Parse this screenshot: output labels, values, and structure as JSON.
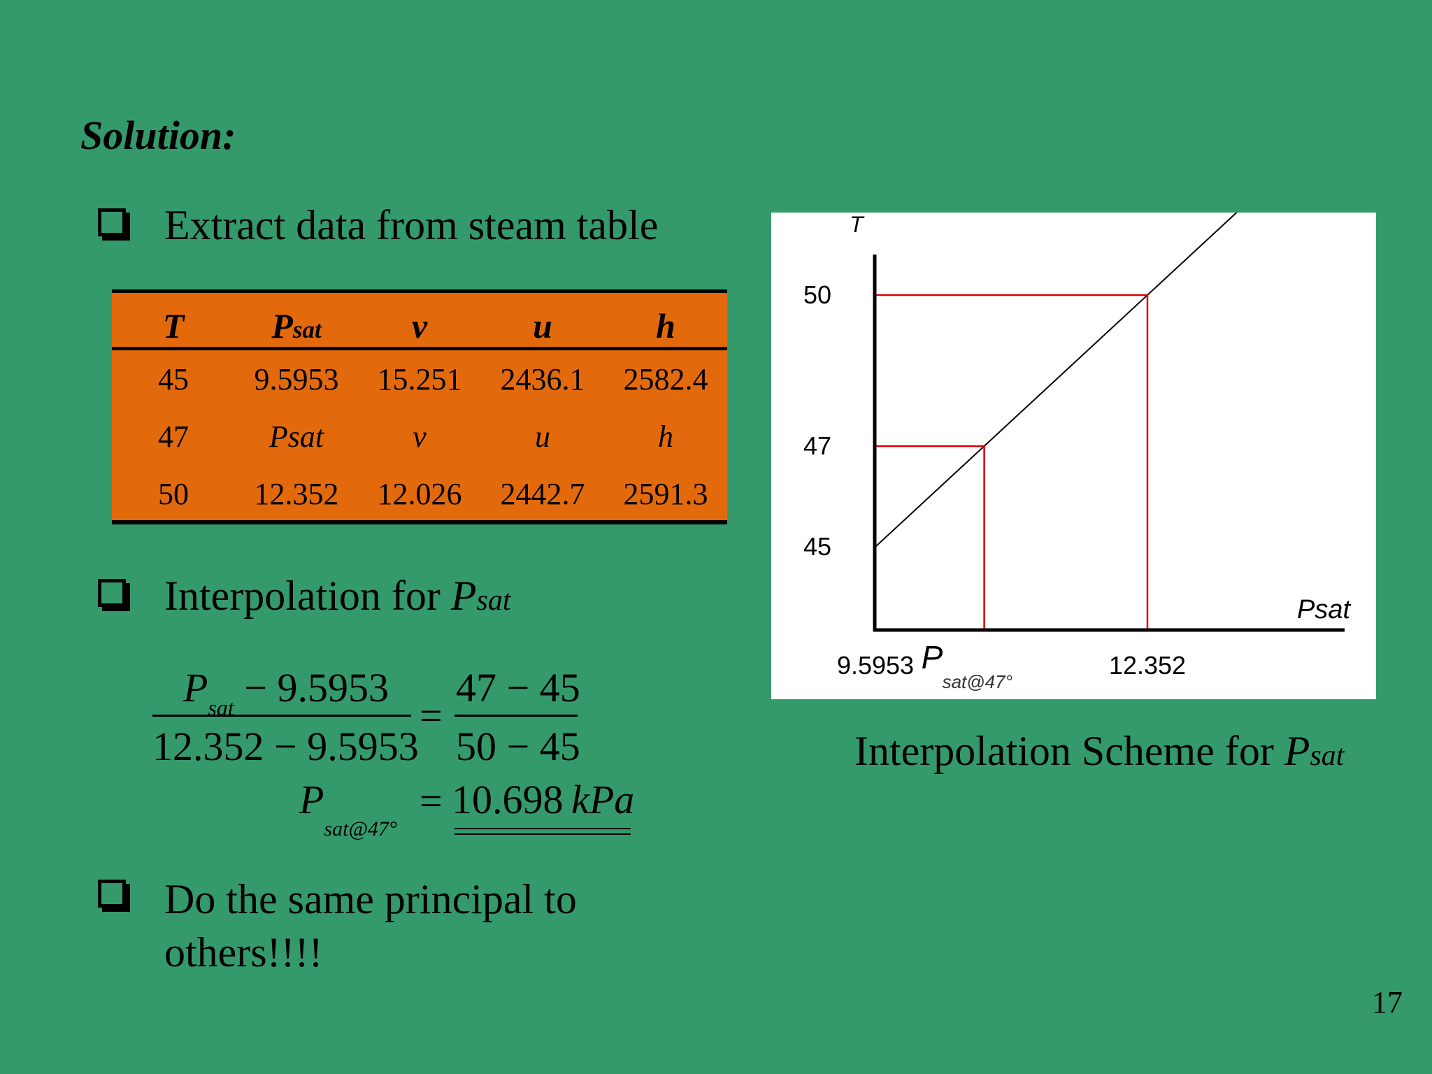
{
  "title": "Solution:",
  "bullets": {
    "b1": "Extract data from steam table",
    "b2_text": "Interpolation for ",
    "b2_var": "P",
    "b2_sub": "sat",
    "b3_line1": "Do the same principal to",
    "b3_line2": "others!!!!"
  },
  "steam_table": {
    "headers": [
      {
        "main": "T",
        "sub": ""
      },
      {
        "main": "P",
        "sub": "sat"
      },
      {
        "main": "v",
        "sub": ""
      },
      {
        "main": "u",
        "sub": ""
      },
      {
        "main": "h",
        "sub": ""
      }
    ],
    "rows": [
      [
        "45",
        "9.5953",
        "15.251",
        "2436.1",
        "2582.4"
      ],
      [
        "47",
        "Psat",
        "v",
        "u",
        "h"
      ],
      [
        "50",
        "12.352",
        "12.026",
        "2442.7",
        "2591.3"
      ]
    ]
  },
  "equation": {
    "num_left_var": "P",
    "num_left_sub": "sat",
    "num_left_rest": " − 9.5953",
    "den_left": "12.352 − 9.5953",
    "equals": "=",
    "num_right": "47 − 45",
    "den_right": "50 − 45",
    "result_var": "P",
    "result_sub": "sat@47°",
    "result_eq": "=",
    "result_value": "10.698",
    "result_unit": "kPa"
  },
  "chart_data": {
    "type": "line",
    "title": "",
    "ylabel": "T",
    "xlabel": "Psat",
    "y_ticks": [
      "50",
      "47",
      "45"
    ],
    "x_ticks": [
      "9.5953",
      "12.352"
    ],
    "x_mid_label_var": "P",
    "x_mid_label_sub": "sat@47°",
    "points": [
      {
        "x": 9.5953,
        "y": 45
      },
      {
        "x": 10.698,
        "y": 47
      },
      {
        "x": 12.352,
        "y": 50
      }
    ],
    "line_color": "#000000",
    "guide_color": "#e00000"
  },
  "caption": {
    "text": "Interpolation Scheme for ",
    "var": "P",
    "sub": "sat"
  },
  "page_number": "17"
}
